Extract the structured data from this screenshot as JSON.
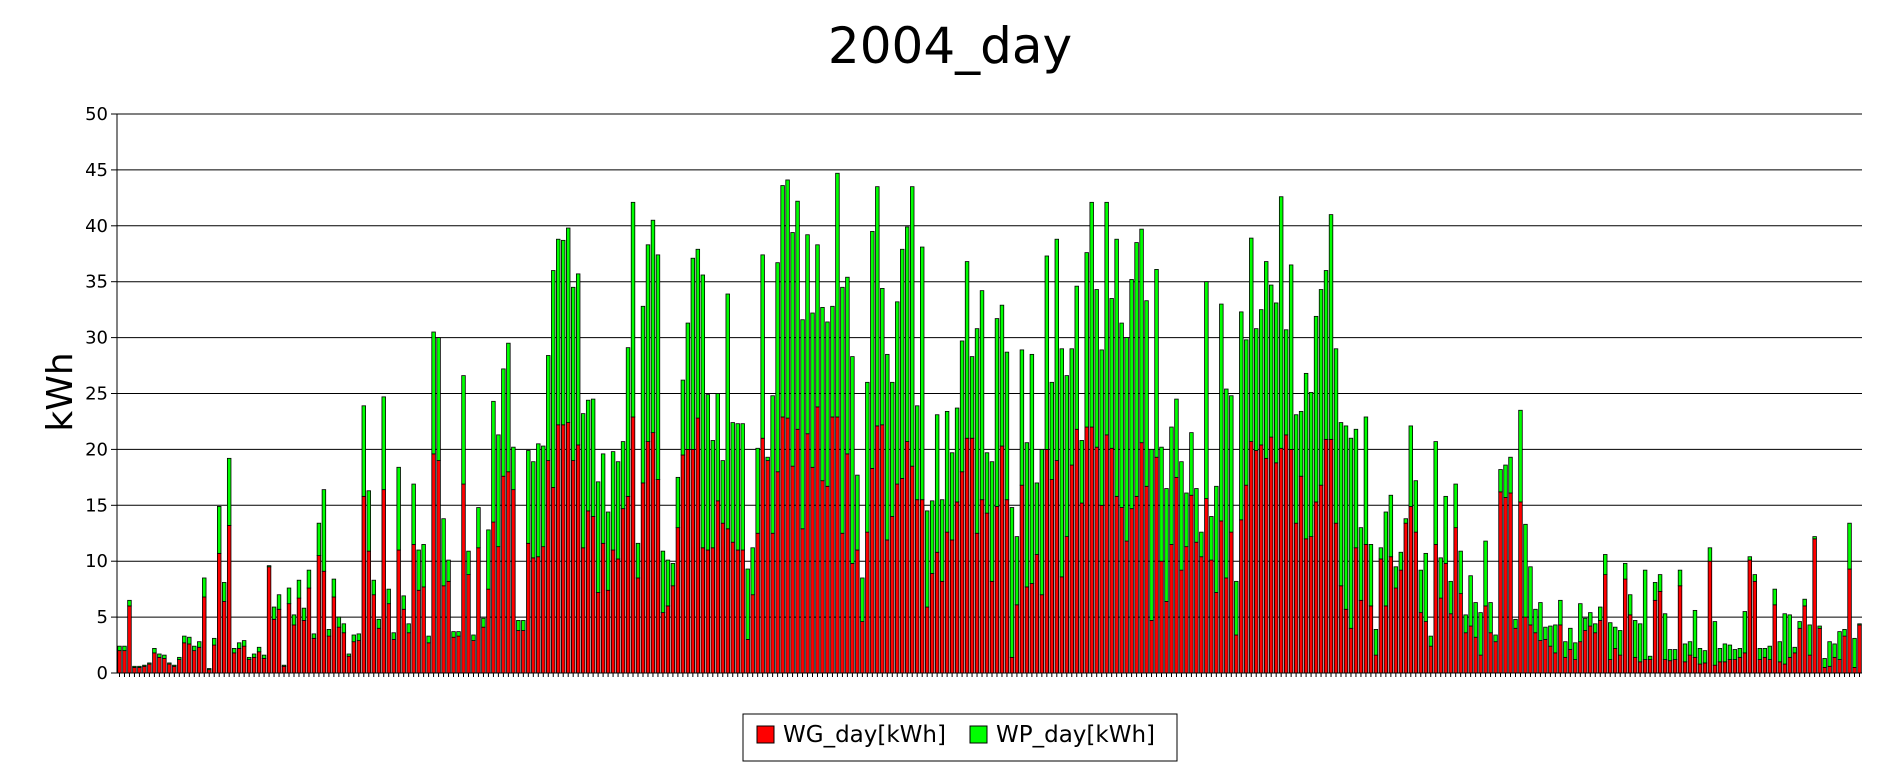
{
  "chart_data": {
    "type": "bar",
    "stacked": true,
    "title": "2004_day",
    "ylabel": "kWh",
    "xlabel": "",
    "ylim": [
      0,
      50
    ],
    "yticks": [
      0,
      5,
      10,
      15,
      20,
      25,
      30,
      35,
      40,
      45,
      50
    ],
    "grid": true,
    "legend_position": "bottom-center",
    "series": [
      {
        "name": "WG_day[kWh]",
        "color": "#ff0000",
        "values": [
          2.0,
          2.0,
          6.0,
          0.5,
          0.5,
          0.6,
          0.8,
          1.8,
          1.4,
          1.3,
          0.8,
          0.6,
          1.2,
          2.7,
          2.6,
          2.0,
          2.3,
          6.8,
          0.3,
          2.5,
          10.7,
          6.4,
          13.2,
          1.8,
          2.2,
          2.4,
          1.2,
          1.4,
          1.9,
          1.3,
          9.5,
          4.8,
          5.7,
          0.6,
          6.2,
          4.3,
          6.7,
          4.7,
          7.6,
          3.1,
          10.5,
          9.1,
          3.3,
          6.8,
          4.1,
          3.6,
          1.5,
          2.8,
          2.9,
          15.8,
          10.9,
          7.0,
          4.0,
          16.4,
          6.2,
          3.0,
          11.0,
          5.7,
          3.6,
          11.5,
          7.4,
          7.7,
          2.7,
          19.6,
          19.0,
          7.8,
          8.2,
          3.2,
          3.3,
          16.9,
          8.8,
          2.9,
          11.2,
          4.1,
          7.5,
          13.5,
          11.3,
          17.6,
          18.0,
          16.4,
          3.8,
          3.8,
          11.6,
          10.3,
          10.4,
          11.3,
          19.0,
          16.6,
          22.2,
          22.2,
          22.4,
          19.0,
          20.4,
          11.2,
          14.5,
          14.0,
          7.2,
          11.6,
          7.4,
          11.0,
          10.2,
          14.7,
          15.8,
          22.9,
          8.5,
          17.0,
          20.7,
          21.5,
          17.3,
          5.4,
          6.0,
          7.8,
          13.0,
          19.5,
          20.0,
          20.0,
          22.8,
          11.2,
          11.0,
          11.2,
          15.4,
          13.4,
          12.9,
          11.7,
          11.0,
          11.0,
          3.0,
          7.0,
          12.5,
          21.0,
          19.0,
          12.5,
          18.0,
          22.9,
          22.8,
          18.5,
          21.8,
          12.9,
          21.4,
          18.4,
          23.8,
          17.2,
          16.7,
          22.9,
          22.9,
          12.5,
          19.6,
          9.8,
          11.0,
          4.6,
          12.6,
          18.3,
          22.1,
          22.2,
          11.9,
          14.0,
          16.9,
          17.4,
          20.7,
          18.5,
          15.5,
          15.5,
          5.9,
          8.9,
          10.8,
          8.2,
          12.6,
          11.9,
          15.3,
          18.0,
          21.0,
          21.0,
          12.5,
          15.5,
          14.3,
          8.2,
          14.9,
          20.3,
          15.5,
          1.4,
          6.1,
          16.8,
          7.7,
          8.0,
          10.6,
          7.0,
          20.0,
          17.3,
          19.0,
          8.6,
          12.2,
          18.6,
          21.8,
          15.2,
          22.0,
          22.0,
          20.2,
          15.0,
          21.3,
          20.1,
          15.8,
          14.8,
          11.8,
          14.7,
          15.8,
          20.6,
          16.7,
          4.7,
          19.3,
          10.0,
          6.4,
          11.5,
          17.5,
          9.2,
          11.3,
          15.9,
          11.7,
          10.4,
          15.6,
          10.1,
          7.2,
          13.6,
          8.5,
          12.6,
          3.4,
          13.7,
          16.8,
          20.7,
          19.9,
          20.4,
          19.2,
          21.1,
          18.8,
          20.1,
          21.3,
          20.0,
          13.4,
          17.6,
          12.0,
          12.2,
          15.3,
          16.8,
          20.9,
          20.9,
          13.4,
          7.8,
          5.7,
          4.0,
          11.2,
          6.5,
          11.5,
          6.0,
          1.6,
          10.2,
          6.0,
          10.4,
          7.6,
          9.2,
          13.4,
          14.9,
          12.6,
          5.4,
          4.6,
          2.4,
          11.5,
          6.7,
          9.8,
          5.3,
          13.0,
          7.1,
          3.6,
          4.2,
          3.2,
          1.6,
          6.0,
          3.6,
          2.8,
          16.2,
          15.7,
          16.1,
          4.0,
          15.3,
          5.0,
          4.3,
          3.6,
          2.9,
          3.0,
          2.4,
          1.8,
          4.3,
          1.4,
          2.1,
          1.2,
          2.8,
          3.8,
          4.2,
          3.6,
          4.7,
          8.8,
          1.2,
          2.2,
          1.6,
          8.4,
          5.2,
          1.4,
          1.0,
          1.2,
          1.2,
          6.5,
          7.3,
          1.2,
          1.1,
          1.2,
          7.8,
          1.0,
          1.6,
          1.4,
          0.8,
          0.9,
          10.0,
          0.7,
          1.0,
          1.0,
          1.2,
          1.2,
          1.4,
          1.8,
          10.1,
          8.2,
          1.2,
          1.4,
          1.2,
          6.1,
          1.0,
          0.8,
          1.4,
          1.8,
          4.0,
          6.0,
          1.6,
          12.0,
          4.0,
          0.5,
          0.6,
          1.4,
          1.2,
          3.3,
          9.3,
          0.5,
          4.3
        ]
      },
      {
        "name": "WP_day[kWh]",
        "color": "#00ff00",
        "values": [
          0.4,
          0.4,
          0.5,
          0.1,
          0.1,
          0.1,
          0.1,
          0.4,
          0.3,
          0.3,
          0.1,
          0.1,
          0.2,
          0.6,
          0.6,
          0.4,
          0.5,
          1.7,
          0.1,
          0.6,
          4.2,
          1.7,
          6.0,
          0.4,
          0.5,
          0.5,
          0.2,
          0.3,
          0.4,
          0.3,
          0.1,
          1.1,
          1.3,
          0.1,
          1.4,
          0.9,
          1.6,
          1.1,
          1.6,
          0.4,
          2.9,
          7.3,
          0.6,
          1.6,
          0.9,
          0.8,
          0.2,
          0.6,
          0.6,
          8.1,
          5.4,
          1.3,
          0.8,
          8.3,
          1.3,
          0.6,
          7.4,
          1.2,
          0.8,
          5.4,
          3.6,
          3.8,
          0.6,
          10.9,
          11.0,
          6.0,
          1.9,
          0.5,
          0.4,
          9.7,
          2.1,
          0.5,
          3.6,
          0.8,
          5.3,
          10.8,
          10.0,
          9.6,
          11.5,
          3.8,
          0.9,
          0.9,
          8.3,
          8.6,
          10.1,
          9.0,
          9.4,
          19.4,
          16.6,
          16.5,
          17.4,
          15.5,
          15.3,
          12.0,
          9.9,
          10.5,
          9.9,
          8.0,
          7.0,
          8.8,
          8.7,
          6.0,
          13.3,
          19.2,
          3.1,
          15.8,
          17.6,
          19.0,
          20.1,
          5.5,
          4.1,
          2.0,
          4.5,
          6.7,
          11.3,
          17.1,
          15.1,
          24.4,
          13.9,
          9.6,
          9.6,
          5.6,
          21.0,
          10.7,
          11.3,
          11.3,
          6.3,
          4.2,
          7.6,
          16.4,
          0.3,
          12.3,
          18.7,
          20.7,
          21.3,
          20.9,
          20.4,
          18.7,
          17.8,
          13.8,
          14.5,
          15.5,
          14.7,
          9.9,
          21.8,
          22.0,
          15.8,
          18.5,
          6.7,
          3.9,
          13.4,
          21.2,
          21.4,
          12.2,
          16.6,
          12.0,
          16.3,
          20.5,
          19.2,
          25.0,
          8.4,
          22.6,
          8.6,
          6.5,
          12.3,
          7.3,
          10.8,
          7.8,
          8.4,
          11.7,
          15.8,
          7.3,
          18.3,
          18.7,
          5.4,
          10.7,
          16.8,
          12.6,
          13.2,
          13.4,
          6.1,
          12.1,
          12.9,
          20.5,
          6.4,
          13.0,
          17.3,
          8.7,
          19.8,
          20.4,
          14.4,
          10.4,
          12.8,
          5.6,
          15.6,
          20.1,
          14.1,
          13.9,
          20.8,
          13.4,
          23.0,
          16.5,
          18.2,
          20.5,
          22.7,
          19.1,
          16.6,
          15.3,
          16.8,
          10.2,
          10.1,
          10.5,
          7.0,
          9.7,
          4.8,
          5.6,
          4.8,
          2.2,
          19.4,
          3.9,
          9.5,
          19.4,
          16.9,
          12.2,
          4.8,
          18.6,
          13.0,
          18.2,
          10.9,
          12.1,
          17.6,
          13.6,
          14.3,
          22.5,
          9.4,
          16.5,
          9.7,
          5.8,
          14.8,
          12.9,
          16.6,
          17.5,
          15.1,
          20.1,
          15.6,
          14.6,
          16.4,
          17.0,
          10.6,
          6.5,
          11.4,
          5.5,
          2.3,
          1.0,
          8.4,
          5.5,
          1.9,
          1.6,
          0.4,
          7.2,
          4.6,
          3.8,
          6.1,
          0.9,
          9.2,
          3.6,
          6.0,
          2.9,
          3.9,
          3.8,
          1.6,
          4.5,
          3.1,
          3.8,
          5.8,
          2.7,
          0.6,
          2.0,
          2.9,
          3.2,
          0.8,
          8.2,
          8.3,
          5.2,
          2.1,
          3.4,
          1.1,
          1.8,
          2.5,
          2.2,
          1.4,
          1.9,
          1.5,
          3.4,
          1.1,
          1.2,
          0.8,
          1.2,
          1.8,
          3.3,
          1.9,
          2.2,
          1.4,
          1.8,
          3.3,
          3.4,
          8.0,
          0.3,
          1.6,
          1.5,
          4.1,
          1.0,
          0.9,
          1.4,
          1.6,
          1.2,
          4.2,
          1.4,
          1.1,
          1.2,
          3.9,
          1.2,
          1.6,
          1.3,
          0.9,
          0.8,
          3.7,
          0.3,
          0.6,
          1.0,
          0.8,
          1.2,
          1.4,
          1.8,
          4.5,
          3.8,
          0.5,
          0.6,
          0.6,
          2.7,
          0.2,
          0.2,
          0.8,
          2.2,
          1.2,
          2.5,
          0.6,
          4.1,
          2.6,
          0.1,
          0.1,
          0.3,
          0.8,
          2.6,
          3.2,
          0.1,
          1.6
        ]
      }
    ]
  }
}
